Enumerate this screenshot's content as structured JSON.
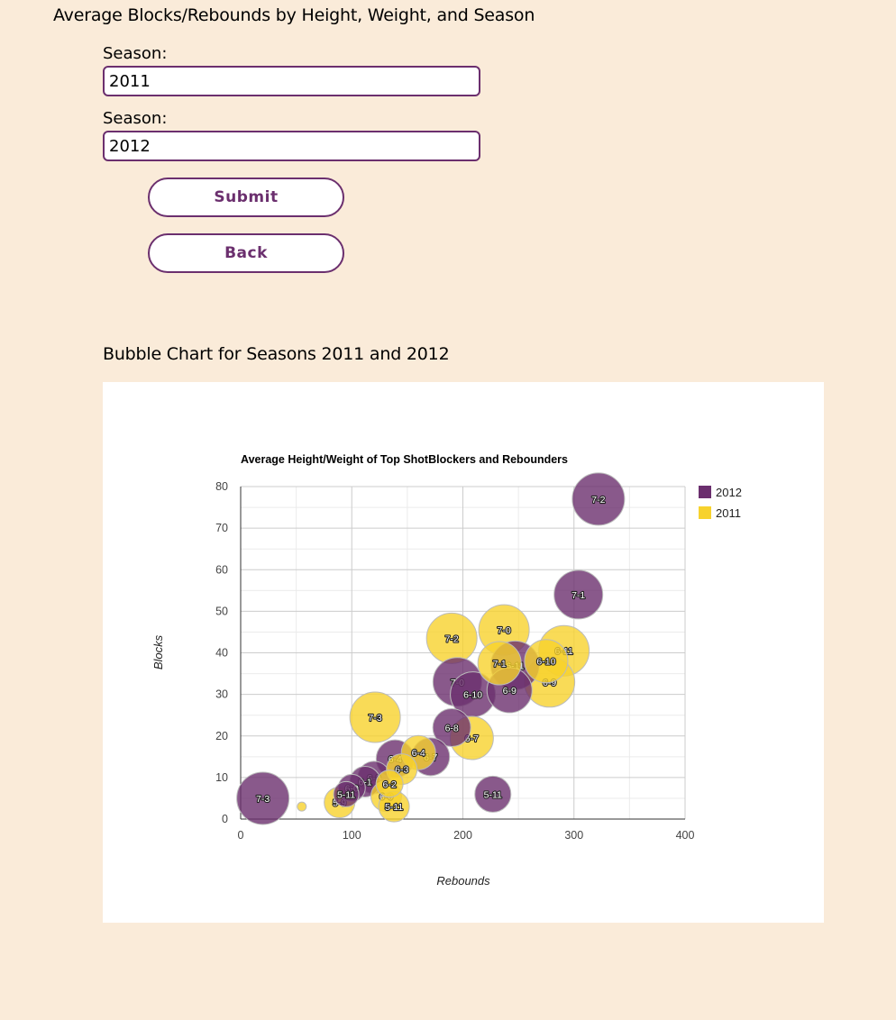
{
  "page": {
    "title": "Average Blocks/Rebounds by Height, Weight, and Season"
  },
  "form": {
    "season1_label": "Season:",
    "season1_value": "2011",
    "season2_label": "Season:",
    "season2_value": "2012",
    "submit_label": "Submit",
    "back_label": "Back"
  },
  "chart_section": {
    "heading": "Bubble Chart for Seasons 2011 and 2012"
  },
  "chart_data": {
    "type": "scatter",
    "subtype": "bubble",
    "title": "Average Height/Weight of Top ShotBlockers and Rebounders",
    "xlabel": "Rebounds",
    "ylabel": "Blocks",
    "xlim": [
      0,
      400
    ],
    "ylim": [
      0,
      80
    ],
    "x_ticks": [
      0,
      100,
      200,
      300,
      400
    ],
    "y_ticks": [
      0,
      10,
      20,
      30,
      40,
      50,
      60,
      70,
      80
    ],
    "grid": true,
    "legend": "right",
    "series": [
      {
        "name": "2012",
        "color": "#6b2f6e",
        "points": [
          {
            "x": 322,
            "y": 77,
            "size": 29,
            "label": "7-2"
          },
          {
            "x": 304,
            "y": 54,
            "size": 27,
            "label": "7-1"
          },
          {
            "x": 247,
            "y": 37,
            "size": 27,
            "label": "6-11"
          },
          {
            "x": 195,
            "y": 33,
            "size": 27,
            "label": "7-0"
          },
          {
            "x": 209,
            "y": 30,
            "size": 25,
            "label": "6-10"
          },
          {
            "x": 242,
            "y": 31,
            "size": 25,
            "label": "6-9"
          },
          {
            "x": 190,
            "y": 22,
            "size": 21,
            "label": "6-8"
          },
          {
            "x": 171,
            "y": 15,
            "size": 21,
            "label": "6-7"
          },
          {
            "x": 139,
            "y": 14.5,
            "size": 21,
            "label": "6-4"
          },
          {
            "x": 120,
            "y": 10,
            "size": 18,
            "label": "6-2"
          },
          {
            "x": 112,
            "y": 9,
            "size": 17,
            "label": "6-1"
          },
          {
            "x": 100,
            "y": 7.5,
            "size": 15,
            "label": "6-0"
          },
          {
            "x": 95,
            "y": 6,
            "size": 14,
            "label": "5-11"
          },
          {
            "x": 227,
            "y": 6,
            "size": 20,
            "label": "5-11"
          },
          {
            "x": 20,
            "y": 5,
            "size": 29,
            "label": "7-3"
          }
        ]
      },
      {
        "name": "2011",
        "color": "#f7d22d",
        "points": [
          {
            "x": 237,
            "y": 45.5,
            "size": 28,
            "label": "7-0"
          },
          {
            "x": 190,
            "y": 43.5,
            "size": 28,
            "label": "7-2"
          },
          {
            "x": 291,
            "y": 40.5,
            "size": 28,
            "label": "6-11"
          },
          {
            "x": 275,
            "y": 38,
            "size": 24,
            "label": "6-10"
          },
          {
            "x": 233,
            "y": 37.5,
            "size": 24,
            "label": "7-1"
          },
          {
            "x": 278,
            "y": 33,
            "size": 28,
            "label": "6-9"
          },
          {
            "x": 121,
            "y": 24.5,
            "size": 28,
            "label": "7-3"
          },
          {
            "x": 208,
            "y": 19.5,
            "size": 24,
            "label": "6-7"
          },
          {
            "x": 160,
            "y": 16,
            "size": 19,
            "label": "6-4"
          },
          {
            "x": 145,
            "y": 12,
            "size": 17,
            "label": "6-3"
          },
          {
            "x": 134,
            "y": 8.5,
            "size": 15,
            "label": "6-2"
          },
          {
            "x": 131,
            "y": 5.5,
            "size": 17,
            "label": "6-0"
          },
          {
            "x": 89,
            "y": 4,
            "size": 17,
            "label": "5-9"
          },
          {
            "x": 138,
            "y": 3,
            "size": 17,
            "label": "5-11"
          },
          {
            "x": 55,
            "y": 3,
            "size": 5,
            "label": ""
          }
        ]
      }
    ]
  }
}
